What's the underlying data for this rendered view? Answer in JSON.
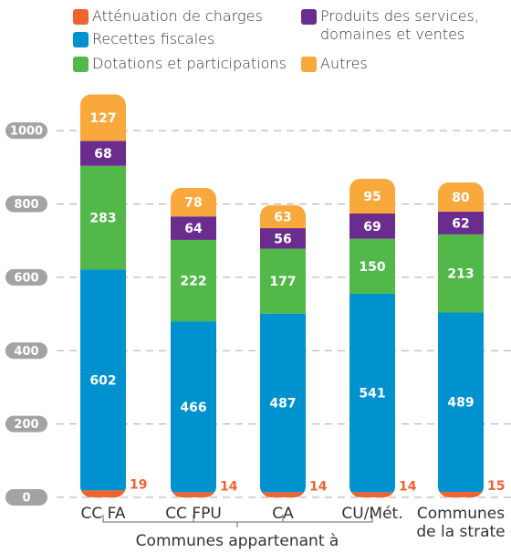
{
  "chart_data": {
    "type": "stacked_bar",
    "categories": [
      "CC FA",
      "CC FPU",
      "CA",
      "CU/Mét.",
      "Communes\nde la strate"
    ],
    "group_label": "Communes appartenant à",
    "series": [
      {
        "name": "Atténuation de charges",
        "color": "#ef6331",
        "values": [
          19,
          14,
          14,
          14,
          15
        ]
      },
      {
        "name": "Recettes fiscales",
        "color": "#0092cf",
        "values": [
          602,
          466,
          487,
          541,
          489
        ]
      },
      {
        "name": "Dotations et participations",
        "color": "#52b84a",
        "values": [
          283,
          222,
          177,
          150,
          213
        ]
      },
      {
        "name": "Produits des services, domaines et ventes",
        "color": "#6b2d8d",
        "values": [
          68,
          64,
          56,
          69,
          62
        ]
      },
      {
        "name": "Autres",
        "color": "#f9a83b",
        "values": [
          127,
          78,
          63,
          95,
          80
        ]
      }
    ],
    "ylim": [
      0,
      1100
    ],
    "yticks": [
      0,
      200,
      400,
      600,
      800,
      1000
    ],
    "grid": true
  }
}
